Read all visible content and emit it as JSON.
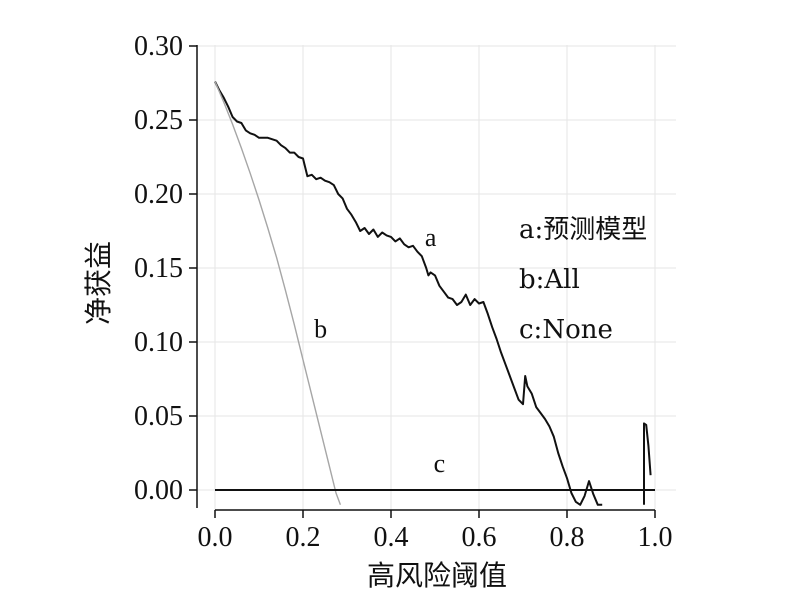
{
  "chart_data": {
    "type": "line",
    "xlabel": "高风险阈值",
    "ylabel": "净获益",
    "xlim": [
      0,
      1
    ],
    "ylim": [
      -0.01,
      0.3
    ],
    "x_ticks": [
      "0.0",
      "0.2",
      "0.4",
      "0.6",
      "0.8",
      "1.0"
    ],
    "y_ticks": [
      "0.00",
      "0.05",
      "0.10",
      "0.15",
      "0.20",
      "0.25",
      "0.30"
    ],
    "grid": true,
    "legend": {
      "position": "right",
      "entries": [
        "a:预测模型",
        "b:All",
        "c:None"
      ]
    },
    "series": [
      {
        "label": "a",
        "color": "#111111",
        "points": [
          [
            0.0,
            0.276
          ],
          [
            0.01,
            0.27
          ],
          [
            0.02,
            0.265
          ],
          [
            0.03,
            0.259
          ],
          [
            0.04,
            0.252
          ],
          [
            0.05,
            0.249
          ],
          [
            0.06,
            0.248
          ],
          [
            0.07,
            0.243
          ],
          [
            0.08,
            0.241
          ],
          [
            0.09,
            0.24
          ],
          [
            0.1,
            0.238
          ],
          [
            0.12,
            0.238
          ],
          [
            0.14,
            0.236
          ],
          [
            0.15,
            0.233
          ],
          [
            0.16,
            0.231
          ],
          [
            0.17,
            0.228
          ],
          [
            0.18,
            0.228
          ],
          [
            0.19,
            0.225
          ],
          [
            0.2,
            0.224
          ],
          [
            0.205,
            0.218
          ],
          [
            0.21,
            0.212
          ],
          [
            0.22,
            0.213
          ],
          [
            0.23,
            0.21
          ],
          [
            0.24,
            0.211
          ],
          [
            0.25,
            0.209
          ],
          [
            0.26,
            0.208
          ],
          [
            0.27,
            0.206
          ],
          [
            0.28,
            0.2
          ],
          [
            0.29,
            0.197
          ],
          [
            0.3,
            0.19
          ],
          [
            0.31,
            0.186
          ],
          [
            0.32,
            0.181
          ],
          [
            0.33,
            0.175
          ],
          [
            0.34,
            0.177
          ],
          [
            0.35,
            0.173
          ],
          [
            0.36,
            0.176
          ],
          [
            0.37,
            0.171
          ],
          [
            0.38,
            0.174
          ],
          [
            0.39,
            0.172
          ],
          [
            0.4,
            0.171
          ],
          [
            0.41,
            0.168
          ],
          [
            0.42,
            0.17
          ],
          [
            0.43,
            0.166
          ],
          [
            0.44,
            0.164
          ],
          [
            0.45,
            0.165
          ],
          [
            0.46,
            0.161
          ],
          [
            0.47,
            0.158
          ],
          [
            0.48,
            0.15
          ],
          [
            0.485,
            0.145
          ],
          [
            0.49,
            0.147
          ],
          [
            0.5,
            0.145
          ],
          [
            0.51,
            0.138
          ],
          [
            0.52,
            0.134
          ],
          [
            0.53,
            0.13
          ],
          [
            0.54,
            0.129
          ],
          [
            0.55,
            0.125
          ],
          [
            0.56,
            0.127
          ],
          [
            0.57,
            0.132
          ],
          [
            0.58,
            0.125
          ],
          [
            0.59,
            0.129
          ],
          [
            0.6,
            0.126
          ],
          [
            0.61,
            0.127
          ],
          [
            0.62,
            0.119
          ],
          [
            0.63,
            0.11
          ],
          [
            0.64,
            0.102
          ],
          [
            0.65,
            0.093
          ],
          [
            0.66,
            0.085
          ],
          [
            0.67,
            0.077
          ],
          [
            0.68,
            0.069
          ],
          [
            0.69,
            0.061
          ],
          [
            0.7,
            0.058
          ],
          [
            0.705,
            0.077
          ],
          [
            0.71,
            0.07
          ],
          [
            0.72,
            0.065
          ],
          [
            0.73,
            0.056
          ],
          [
            0.74,
            0.052
          ],
          [
            0.75,
            0.048
          ],
          [
            0.76,
            0.043
          ],
          [
            0.77,
            0.036
          ],
          [
            0.78,
            0.025
          ],
          [
            0.79,
            0.016
          ],
          [
            0.8,
            0.008
          ],
          [
            0.81,
            -0.002
          ],
          [
            0.82,
            -0.008
          ],
          [
            0.83,
            -0.01
          ],
          [
            0.84,
            -0.004
          ],
          [
            0.85,
            0.006
          ],
          [
            0.86,
            -0.003
          ],
          [
            0.87,
            -0.01
          ],
          [
            0.88,
            -0.01
          ]
        ]
      },
      {
        "label": "a",
        "color": "#111111",
        "points": [
          [
            0.975,
            -0.01
          ],
          [
            0.975,
            0.045
          ],
          [
            0.98,
            0.044
          ],
          [
            0.985,
            0.03
          ],
          [
            0.99,
            0.01
          ]
        ]
      },
      {
        "label": "b",
        "color": "#a6a6a6",
        "points": [
          [
            0.0,
            0.276
          ],
          [
            0.02,
            0.262
          ],
          [
            0.04,
            0.247
          ],
          [
            0.06,
            0.231
          ],
          [
            0.08,
            0.214
          ],
          [
            0.1,
            0.196
          ],
          [
            0.12,
            0.177
          ],
          [
            0.14,
            0.157
          ],
          [
            0.16,
            0.135
          ],
          [
            0.18,
            0.112
          ],
          [
            0.2,
            0.088
          ],
          [
            0.22,
            0.064
          ],
          [
            0.24,
            0.04
          ],
          [
            0.26,
            0.016
          ],
          [
            0.275,
            -0.002
          ],
          [
            0.285,
            -0.01
          ]
        ]
      },
      {
        "label": "c",
        "color": "#111111",
        "points": [
          [
            0.0,
            0.0
          ],
          [
            1.0,
            0.0
          ]
        ]
      }
    ],
    "annotations": [
      {
        "text": "a",
        "x": 0.49,
        "y": 0.165
      },
      {
        "text": "b",
        "x": 0.24,
        "y": 0.103
      },
      {
        "text": "c",
        "x": 0.51,
        "y": 0.012
      }
    ]
  }
}
